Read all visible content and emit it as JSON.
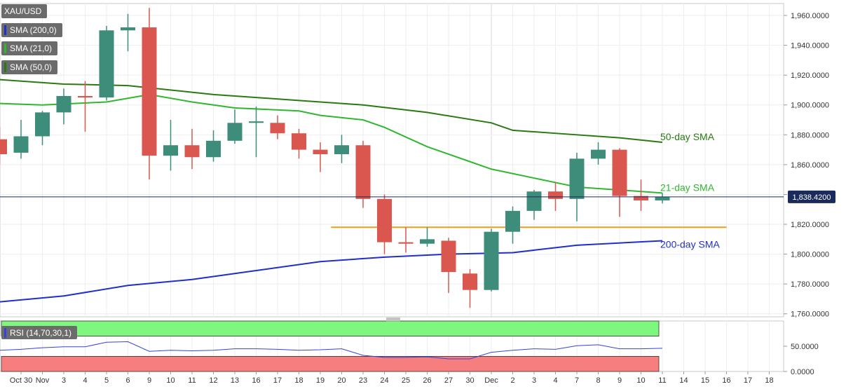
{
  "legend": {
    "symbol": "XAU/USD",
    "sma200": "SMA (200,0)",
    "sma21": "SMA (21,0)",
    "sma50": "SMA (50,0)",
    "rsi": "RSI (14,70,30,1)"
  },
  "colors": {
    "bull": "#3d8d7a",
    "bear": "#d9574e",
    "sma50": "#2a7a12",
    "sma21": "#2fb82f",
    "sma200": "#1f2fcc",
    "support": "#f59b1a",
    "rsi_line": "#3344dd",
    "rsi_overbought": "#7ef77e",
    "rsi_oversold": "#f77e7e"
  },
  "chart_data": {
    "type": "candlestick",
    "title": "",
    "last_price_label": "1,838.4200",
    "last_price": 1838.42,
    "ylim": [
      1758,
      1968
    ],
    "y_ticks": [
      "1,960.0000",
      "1,940.0000",
      "1,920.0000",
      "1,900.0000",
      "1,880.0000",
      "1,860.0000",
      "1,840.0000",
      "1,820.0000",
      "1,800.0000",
      "1,780.0000",
      "1,760.0000"
    ],
    "y_tick_values": [
      1960,
      1940,
      1920,
      1900,
      1880,
      1860,
      1840,
      1820,
      1800,
      1780,
      1760
    ],
    "x_ticks": [
      "Oct 30",
      "Nov",
      "3",
      "4",
      "5",
      "6",
      "9",
      "10",
      "11",
      "12",
      "13",
      "16",
      "17",
      "18",
      "19",
      "20",
      "23",
      "24",
      "25",
      "26",
      "27",
      "30",
      "Dec",
      "2",
      "3",
      "4",
      "7",
      "8",
      "9",
      "10",
      "11",
      "14",
      "15",
      "16",
      "17",
      "18"
    ],
    "candles": [
      {
        "x": "Oct 29",
        "o": 1877,
        "h": 1885,
        "l": 1860,
        "c": 1867
      },
      {
        "x": "Oct 30",
        "o": 1868,
        "h": 1890,
        "l": 1864,
        "c": 1879
      },
      {
        "x": "Nov 2",
        "o": 1879,
        "h": 1896,
        "l": 1873,
        "c": 1895
      },
      {
        "x": "Nov 3",
        "o": 1895,
        "h": 1911,
        "l": 1887,
        "c": 1906
      },
      {
        "x": "Nov 4",
        "o": 1906,
        "h": 1916,
        "l": 1882,
        "c": 1905
      },
      {
        "x": "Nov 5",
        "o": 1905,
        "h": 1953,
        "l": 1903,
        "c": 1950
      },
      {
        "x": "Nov 6",
        "o": 1950,
        "h": 1961,
        "l": 1936,
        "c": 1952
      },
      {
        "x": "Nov 9",
        "o": 1952,
        "h": 1965,
        "l": 1850,
        "c": 1866
      },
      {
        "x": "Nov 10",
        "o": 1866,
        "h": 1890,
        "l": 1856,
        "c": 1873
      },
      {
        "x": "Nov 11",
        "o": 1873,
        "h": 1884,
        "l": 1857,
        "c": 1865
      },
      {
        "x": "Nov 12",
        "o": 1865,
        "h": 1883,
        "l": 1862,
        "c": 1876
      },
      {
        "x": "Nov 13",
        "o": 1876,
        "h": 1897,
        "l": 1874,
        "c": 1888
      },
      {
        "x": "Nov 16",
        "o": 1888,
        "h": 1899,
        "l": 1865,
        "c": 1889
      },
      {
        "x": "Nov 17",
        "o": 1888,
        "h": 1893,
        "l": 1877,
        "c": 1881
      },
      {
        "x": "Nov 18",
        "o": 1881,
        "h": 1884,
        "l": 1864,
        "c": 1870
      },
      {
        "x": "Nov 19",
        "o": 1870,
        "h": 1875,
        "l": 1855,
        "c": 1867
      },
      {
        "x": "Nov 20",
        "o": 1867,
        "h": 1880,
        "l": 1861,
        "c": 1873
      },
      {
        "x": "Nov 23",
        "o": 1873,
        "h": 1876,
        "l": 1831,
        "c": 1837
      },
      {
        "x": "Nov 24",
        "o": 1837,
        "h": 1840,
        "l": 1800,
        "c": 1808
      },
      {
        "x": "Nov 25",
        "o": 1808,
        "h": 1818,
        "l": 1801,
        "c": 1807
      },
      {
        "x": "Nov 26",
        "o": 1807,
        "h": 1818,
        "l": 1805,
        "c": 1810
      },
      {
        "x": "Nov 27",
        "o": 1809,
        "h": 1811,
        "l": 1774,
        "c": 1788
      },
      {
        "x": "Nov 30",
        "o": 1787,
        "h": 1790,
        "l": 1764,
        "c": 1776
      },
      {
        "x": "Dec 1",
        "o": 1776,
        "h": 1817,
        "l": 1775,
        "c": 1815
      },
      {
        "x": "Dec 2",
        "o": 1815,
        "h": 1832,
        "l": 1807,
        "c": 1829
      },
      {
        "x": "Dec 3",
        "o": 1829,
        "h": 1843,
        "l": 1823,
        "c": 1842
      },
      {
        "x": "Dec 4",
        "o": 1842,
        "h": 1848,
        "l": 1829,
        "c": 1837
      },
      {
        "x": "Dec 7",
        "o": 1837,
        "h": 1868,
        "l": 1822,
        "c": 1864
      },
      {
        "x": "Dec 8",
        "o": 1864,
        "h": 1875,
        "l": 1860,
        "c": 1870
      },
      {
        "x": "Dec 9",
        "o": 1870,
        "h": 1871,
        "l": 1825,
        "c": 1839
      },
      {
        "x": "Dec 10",
        "o": 1839,
        "h": 1850,
        "l": 1829,
        "c": 1836
      },
      {
        "x": "Dec 11",
        "o": 1836,
        "h": 1841,
        "l": 1834,
        "c": 1838.42
      }
    ],
    "series": [
      {
        "name": "50-day SMA",
        "key": "sma50",
        "points": [
          [
            -1,
            1917
          ],
          [
            2,
            1914
          ],
          [
            5,
            1913
          ],
          [
            9,
            1907
          ],
          [
            13,
            1903
          ],
          [
            16,
            1900
          ],
          [
            19,
            1895
          ],
          [
            22,
            1888
          ],
          [
            23,
            1883
          ],
          [
            25,
            1881
          ],
          [
            28,
            1878
          ],
          [
            30,
            1875
          ]
        ]
      },
      {
        "name": "21-day SMA",
        "key": "sma21",
        "points": [
          [
            -1,
            1901
          ],
          [
            1,
            1900
          ],
          [
            4,
            1902
          ],
          [
            6,
            1907
          ],
          [
            8,
            1902
          ],
          [
            10,
            1898
          ],
          [
            13,
            1896
          ],
          [
            14,
            1893
          ],
          [
            16,
            1890
          ],
          [
            17,
            1885
          ],
          [
            19,
            1872
          ],
          [
            21,
            1862
          ],
          [
            22,
            1857
          ],
          [
            24,
            1851
          ],
          [
            26,
            1845
          ],
          [
            27,
            1844
          ],
          [
            30,
            1841
          ]
        ]
      },
      {
        "name": "200-day SMA",
        "key": "sma200",
        "points": [
          [
            -1,
            1768
          ],
          [
            2,
            1772
          ],
          [
            5,
            1779
          ],
          [
            8,
            1783
          ],
          [
            11,
            1789
          ],
          [
            14,
            1795
          ],
          [
            17,
            1798
          ],
          [
            20,
            1800
          ],
          [
            23,
            1801
          ],
          [
            26,
            1806
          ],
          [
            30,
            1809
          ]
        ]
      }
    ],
    "support_line": {
      "value": 1818,
      "from_index": 14.5,
      "to_index": 33
    },
    "sma_labels": [
      {
        "key": "sma50",
        "text": "50-day SMA",
        "value": 1875
      },
      {
        "key": "sma21",
        "text": "21-day SMA",
        "value": 1841
      },
      {
        "key": "sma200",
        "text": "200-day SMA",
        "value": 1809
      }
    ],
    "rsi": {
      "ylim": [
        0,
        100
      ],
      "y_ticks": [
        "50.0000",
        "0.0000"
      ],
      "y_tick_values": [
        50,
        0
      ],
      "overbought": 70,
      "oversold": 30,
      "values": [
        42,
        44,
        47,
        49,
        49,
        58,
        59,
        40,
        42,
        41,
        42,
        45,
        45,
        44,
        42,
        43,
        45,
        32,
        28,
        28,
        29,
        25,
        25,
        38,
        42,
        45,
        44,
        51,
        53,
        45,
        45,
        46
      ]
    }
  }
}
